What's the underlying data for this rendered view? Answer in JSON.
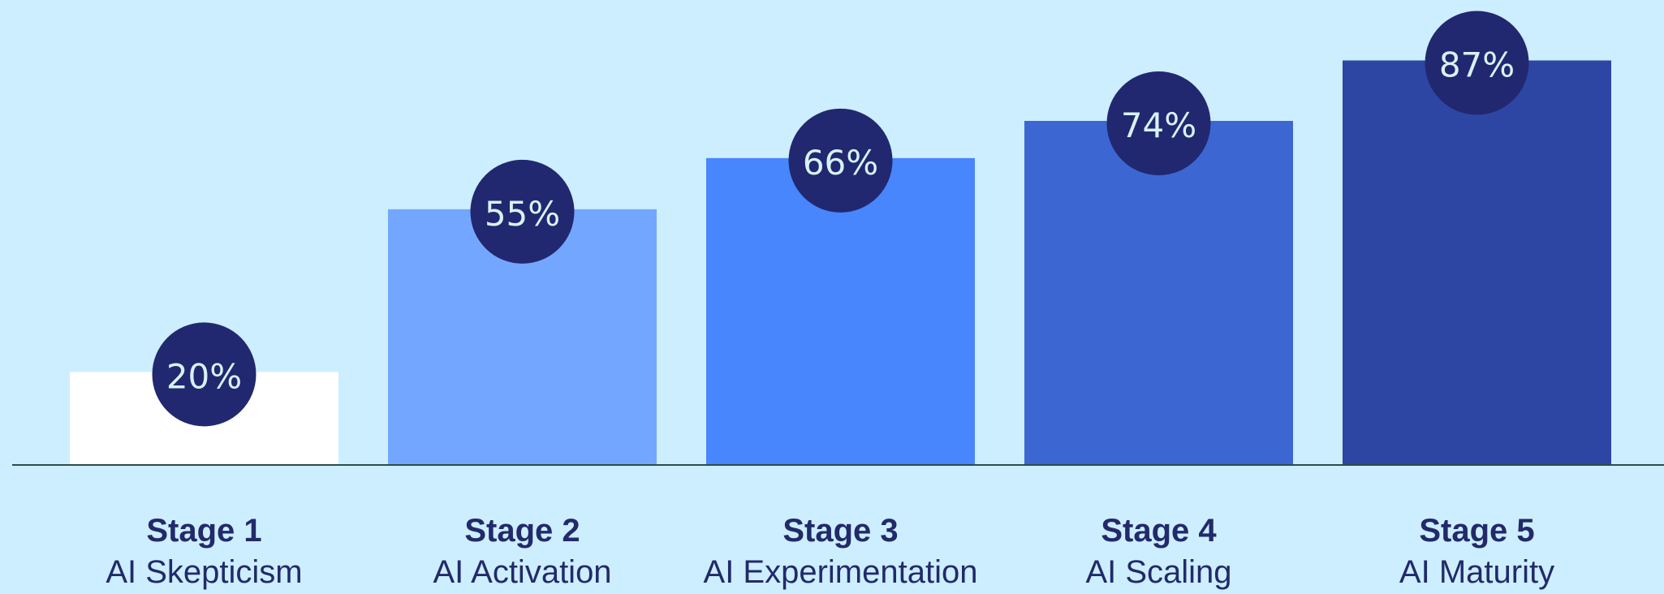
{
  "chart_data": {
    "type": "bar",
    "title": "",
    "xlabel": "",
    "ylabel": "",
    "ylim": [
      0,
      100
    ],
    "grid": false,
    "legend": "none",
    "categories": [
      "Stage 1",
      "Stage 2",
      "Stage 3",
      "Stage 4",
      "Stage 5"
    ],
    "subcategories": [
      "AI Skepticism",
      "AI Activation",
      "AI Experimentation",
      "AI Scaling",
      "AI Maturity"
    ],
    "values": [
      20,
      55,
      66,
      74,
      87
    ],
    "value_labels": [
      "20%",
      "55%",
      "66%",
      "74%",
      "87%"
    ],
    "bar_colors": [
      "#ffffff",
      "#73a7ff",
      "#4786fd",
      "#3c67d3",
      "#2d46a3"
    ],
    "badge_color": "#212870",
    "badge_text_color": "#d7f2f4",
    "label_color": "#222a6a",
    "baseline_color": "#2b4d4a",
    "background": "#cdeefe"
  }
}
